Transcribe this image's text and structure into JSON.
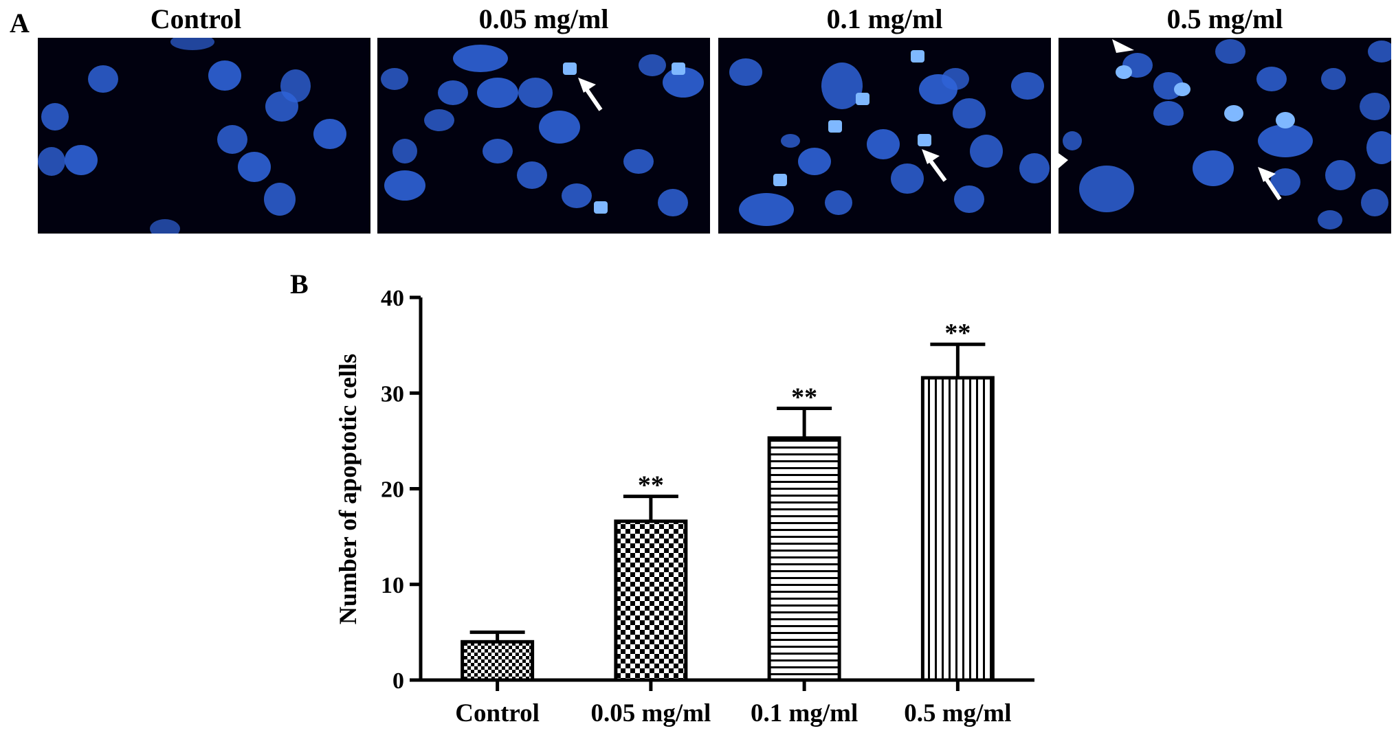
{
  "panel_a": {
    "letter": "A",
    "images": [
      {
        "title": "Control"
      },
      {
        "title": "0.05 mg/ml"
      },
      {
        "title": "0.1 mg/ml"
      },
      {
        "title": "0.5 mg/ml"
      }
    ],
    "nuclei_color": "#2f63d8",
    "apoptotic_color": "#7fb8ff",
    "background_color": "#01010f"
  },
  "panel_b": {
    "letter": "B"
  },
  "chart_data": {
    "type": "bar",
    "categories": [
      "Control",
      "0.05 mg/ml",
      "0.1 mg/ml",
      "0.5 mg/ml"
    ],
    "values": [
      4,
      16.6,
      25.3,
      31.6
    ],
    "errors": [
      1.0,
      2.6,
      3.1,
      3.5
    ],
    "significance": [
      "",
      "**",
      "**",
      "**"
    ],
    "patterns": [
      "fine-checker",
      "checker",
      "horizontal-lines",
      "vertical-lines"
    ],
    "ylabel": "Number of apoptotic cells",
    "xlabel": "",
    "ylim": [
      0,
      40
    ],
    "yticks": [
      "0",
      "10",
      "20",
      "30",
      "40"
    ],
    "grid": false,
    "legend": "none"
  }
}
